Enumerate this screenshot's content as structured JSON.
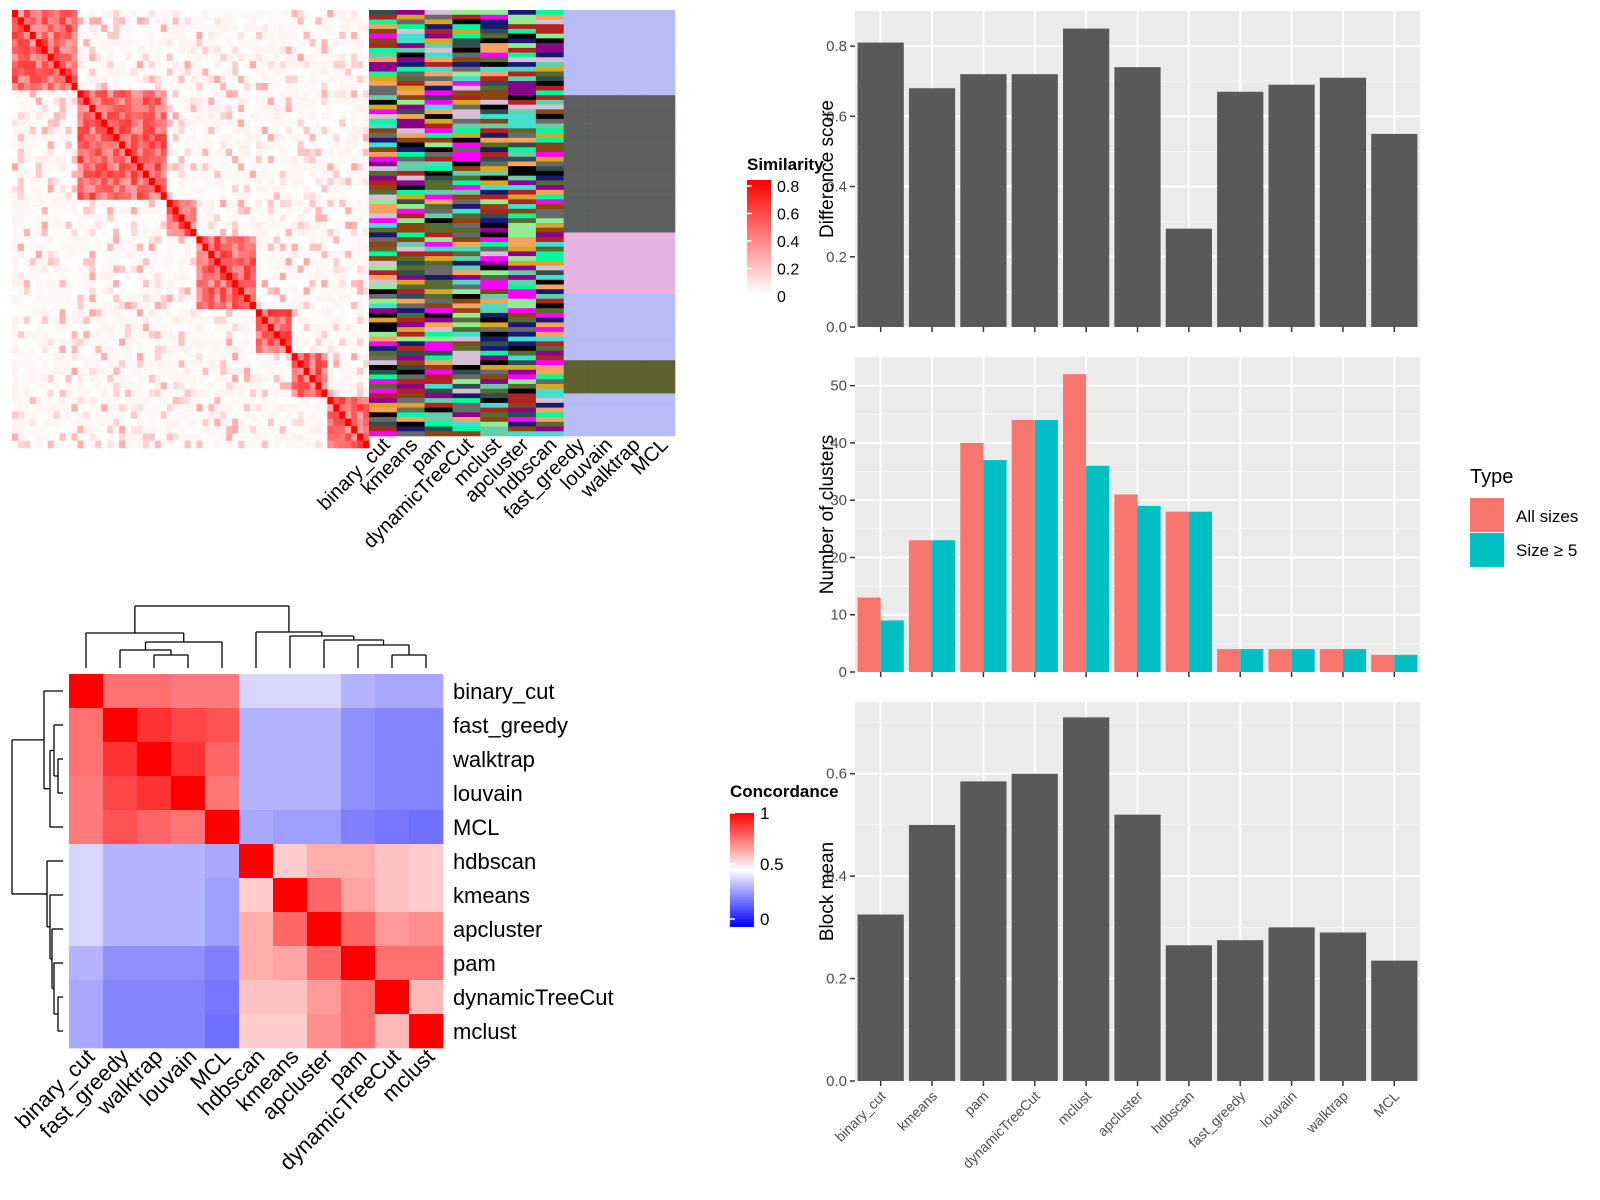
{
  "similarity_panel": {
    "legend_title": "Similarity",
    "legend_ticks": [
      "0.8",
      "0.6",
      "0.4",
      "0.2",
      "0"
    ],
    "colors": {
      "high": "#ff0000",
      "low": "#ffffff"
    }
  },
  "methods_order": [
    "binary_cut",
    "kmeans",
    "pam",
    "dynamicTreeCut",
    "mclust",
    "apcluster",
    "hdbscan",
    "fast_greedy",
    "louvain",
    "walktrap",
    "MCL"
  ],
  "concordance_panel": {
    "legend_title": "Concordance",
    "legend_ticks": [
      "1",
      "0.5",
      "0"
    ],
    "colors": {
      "high": "#ff0000",
      "mid": "#ffffff",
      "low": "#0000ff"
    },
    "order": [
      "binary_cut",
      "fast_greedy",
      "walktrap",
      "louvain",
      "MCL",
      "hdbscan",
      "kmeans",
      "apcluster",
      "pam",
      "dynamicTreeCut",
      "mclust"
    ]
  },
  "chart_data": [
    {
      "type": "bar",
      "ylabel": "Difference score",
      "categories": [
        "binary_cut",
        "kmeans",
        "pam",
        "dynamicTreeCut",
        "mclust",
        "apcluster",
        "hdbscan",
        "fast_greedy",
        "louvain",
        "walktrap",
        "MCL"
      ],
      "values": [
        0.81,
        0.68,
        0.72,
        0.72,
        0.85,
        0.74,
        0.28,
        0.67,
        0.69,
        0.71,
        0.55
      ],
      "ylim": [
        0,
        0.9
      ],
      "yticks": [
        "0.0",
        "0.2",
        "0.4",
        "0.6",
        "0.8"
      ],
      "bar_color": "#595959"
    },
    {
      "type": "bar",
      "ylabel": "Number of clusters",
      "categories": [
        "binary_cut",
        "kmeans",
        "pam",
        "dynamicTreeCut",
        "mclust",
        "apcluster",
        "hdbscan",
        "fast_greedy",
        "louvain",
        "walktrap",
        "MCL"
      ],
      "series": [
        {
          "name": "All sizes",
          "color": "#f8766d",
          "values": [
            13,
            23,
            40,
            44,
            52,
            31,
            28,
            4,
            4,
            4,
            3
          ]
        },
        {
          "name": "Size ≥ 5",
          "color": "#00bfc4",
          "values": [
            9,
            23,
            37,
            44,
            36,
            29,
            28,
            4,
            4,
            4,
            3
          ]
        }
      ],
      "legend_title": "Type",
      "legend_position": "right",
      "ylim": [
        0,
        55
      ],
      "yticks": [
        "0",
        "10",
        "20",
        "30",
        "40",
        "50"
      ]
    },
    {
      "type": "bar",
      "ylabel": "Block mean",
      "categories": [
        "binary_cut",
        "kmeans",
        "pam",
        "dynamicTreeCut",
        "mclust",
        "apcluster",
        "hdbscan",
        "fast_greedy",
        "louvain",
        "walktrap",
        "MCL"
      ],
      "values": [
        0.325,
        0.5,
        0.585,
        0.6,
        0.71,
        0.52,
        0.265,
        0.275,
        0.3,
        0.29,
        0.235
      ],
      "ylim": [
        0,
        0.74
      ],
      "yticks": [
        "0.0",
        "0.2",
        "0.4",
        "0.6"
      ],
      "bar_color": "#595959"
    },
    {
      "type": "heatmap",
      "title": "",
      "rows": [
        "binary_cut",
        "fast_greedy",
        "walktrap",
        "louvain",
        "MCL",
        "hdbscan",
        "kmeans",
        "apcluster",
        "pam",
        "dynamicTreeCut",
        "mclust"
      ],
      "columns": [
        "binary_cut",
        "fast_greedy",
        "walktrap",
        "louvain",
        "MCL",
        "hdbscan",
        "kmeans",
        "apcluster",
        "pam",
        "dynamicTreeCut",
        "mclust"
      ],
      "values": [
        [
          1.0,
          0.78,
          0.78,
          0.76,
          0.76,
          0.42,
          0.42,
          0.42,
          0.35,
          0.33,
          0.33
        ],
        [
          0.78,
          1.0,
          0.9,
          0.86,
          0.84,
          0.35,
          0.35,
          0.35,
          0.28,
          0.26,
          0.26
        ],
        [
          0.78,
          0.9,
          1.0,
          0.9,
          0.8,
          0.35,
          0.35,
          0.35,
          0.28,
          0.26,
          0.26
        ],
        [
          0.76,
          0.86,
          0.9,
          1.0,
          0.77,
          0.35,
          0.35,
          0.35,
          0.28,
          0.26,
          0.26
        ],
        [
          0.76,
          0.84,
          0.8,
          0.77,
          1.0,
          0.33,
          0.31,
          0.31,
          0.25,
          0.23,
          0.22
        ],
        [
          0.42,
          0.35,
          0.35,
          0.35,
          0.33,
          1.0,
          0.6,
          0.66,
          0.66,
          0.62,
          0.6
        ],
        [
          0.42,
          0.35,
          0.35,
          0.35,
          0.31,
          0.6,
          1.0,
          0.8,
          0.68,
          0.62,
          0.6
        ],
        [
          0.42,
          0.35,
          0.35,
          0.35,
          0.31,
          0.66,
          0.8,
          1.0,
          0.8,
          0.7,
          0.72
        ],
        [
          0.35,
          0.28,
          0.28,
          0.28,
          0.25,
          0.66,
          0.68,
          0.8,
          1.0,
          0.78,
          0.78
        ],
        [
          0.33,
          0.26,
          0.26,
          0.26,
          0.23,
          0.62,
          0.62,
          0.7,
          0.78,
          1.0,
          0.64
        ],
        [
          0.33,
          0.26,
          0.26,
          0.26,
          0.22,
          0.6,
          0.6,
          0.72,
          0.78,
          0.64,
          1.0
        ]
      ]
    }
  ]
}
